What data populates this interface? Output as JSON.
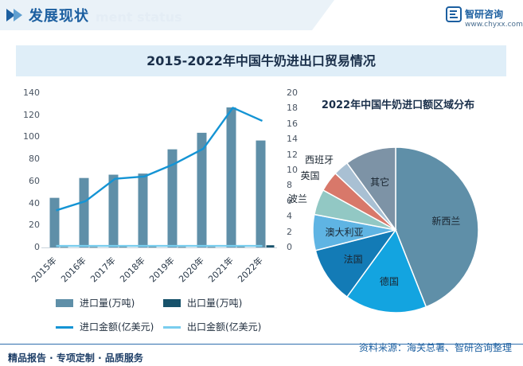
{
  "header": {
    "title": "发展现状",
    "subtitle_watermark": "ment status",
    "brand_name": "智研咨询",
    "brand_url": "www.chyxx.com"
  },
  "chart_title": "2015-2022年中国牛奶进出口贸易情况",
  "pie_title": "2022年中国牛奶进口额区域分布",
  "footer": {
    "left": "精品报告 · 专项定制 · 品质服务",
    "source": "资料来源：海关总署、智研咨询整理"
  },
  "colors": {
    "import_volume": "#5f8fa8",
    "export_volume": "#17526b",
    "import_value": "#1494d4",
    "export_value": "#79cdee"
  },
  "chart_data": [
    {
      "type": "bar",
      "categories": [
        "2015年",
        "2016年",
        "2017年",
        "2018年",
        "2019年",
        "2020年",
        "2021年",
        "2022年"
      ],
      "series": [
        {
          "name": "进口量(万吨)",
          "type": "bar",
          "axis": "left",
          "values": [
            45,
            63,
            66,
            67,
            89,
            104,
            127,
            97
          ]
        },
        {
          "name": "出口量(万吨)",
          "type": "bar",
          "axis": "left",
          "values": [
            0.3,
            0.3,
            0.4,
            0.4,
            0.3,
            0.3,
            0.4,
            2.0
          ]
        },
        {
          "name": "进口金额(亿美元)",
          "type": "line",
          "axis": "right",
          "values": [
            4.8,
            6.0,
            8.9,
            9.2,
            10.8,
            12.8,
            18.1,
            16.4
          ]
        },
        {
          "name": "出口金额(亿美元)",
          "type": "line",
          "axis": "right",
          "values": [
            0.1,
            0.1,
            0.1,
            0.1,
            0.1,
            0.1,
            0.1,
            0.1
          ]
        }
      ],
      "ylim_left": [
        0,
        140
      ],
      "yticks_left": [
        "0",
        "20",
        "40",
        "60",
        "80",
        "100",
        "120",
        "140"
      ],
      "ylim_right": [
        0,
        20
      ],
      "yticks_right": [
        "0",
        "2",
        "4",
        "6",
        "8",
        "10",
        "12",
        "14",
        "16",
        "18",
        "20"
      ],
      "legend_position": "bottom",
      "grid": false
    },
    {
      "type": "pie",
      "title": "2022年中国牛奶进口额区域分布",
      "labels": [
        "新西兰",
        "德国",
        "法国",
        "澳大利亚",
        "波兰",
        "英国",
        "西班牙",
        "其它"
      ],
      "values": [
        44,
        16,
        11,
        7,
        5,
        4,
        3,
        10
      ],
      "colors": [
        "#5f8fa8",
        "#13a4e0",
        "#137bb6",
        "#5fb4e3",
        "#92c8c4",
        "#d8786a",
        "#a9c0d3",
        "#7d93a6"
      ]
    }
  ]
}
